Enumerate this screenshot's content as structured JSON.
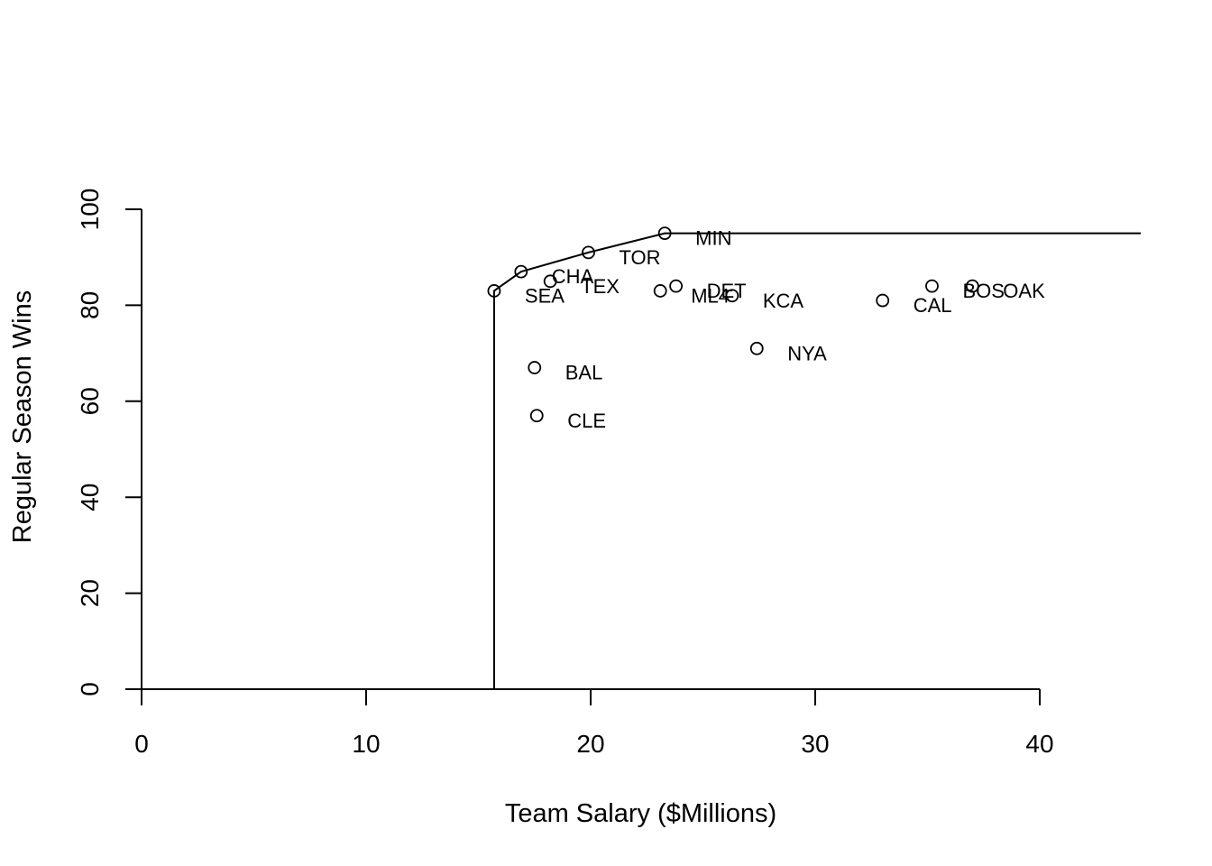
{
  "chart_data": {
    "type": "scatter",
    "title": "",
    "xlabel": "Team Salary ($Millions)",
    "ylabel": "Regular Season Wins",
    "xlim": [
      0,
      40
    ],
    "ylim": [
      0,
      100
    ],
    "x_ticks": [
      0,
      10,
      20,
      30,
      40
    ],
    "y_ticks": [
      0,
      20,
      40,
      60,
      80,
      100
    ],
    "grid": false,
    "legend": "none",
    "marker": "open-circle",
    "color": "#000000",
    "points": [
      {
        "label": "SEA",
        "x": 15.7,
        "y": 83
      },
      {
        "label": "BAL",
        "x": 17.5,
        "y": 67
      },
      {
        "label": "CLE",
        "x": 17.6,
        "y": 57
      },
      {
        "label": "CHA",
        "x": 16.9,
        "y": 87
      },
      {
        "label": "TEX",
        "x": 18.2,
        "y": 85
      },
      {
        "label": "TOR",
        "x": 19.9,
        "y": 91
      },
      {
        "label": "MIN",
        "x": 23.3,
        "y": 95
      },
      {
        "label": "ML4",
        "x": 23.1,
        "y": 83
      },
      {
        "label": "DET",
        "x": 23.8,
        "y": 84
      },
      {
        "label": "KCA",
        "x": 26.3,
        "y": 82
      },
      {
        "label": "NYA",
        "x": 27.4,
        "y": 71
      },
      {
        "label": "CAL",
        "x": 33.0,
        "y": 81
      },
      {
        "label": "BOS",
        "x": 35.2,
        "y": 84
      },
      {
        "label": "OAK",
        "x": 37.0,
        "y": 84
      }
    ],
    "label_text_for_unlabeled_point_CHA_marker": "",
    "frontier_line": {
      "x": [
        15.7,
        15.7,
        16.9,
        19.9,
        23.3,
        44.5
      ],
      "y": [
        0,
        83,
        87,
        91,
        95,
        95
      ]
    }
  }
}
